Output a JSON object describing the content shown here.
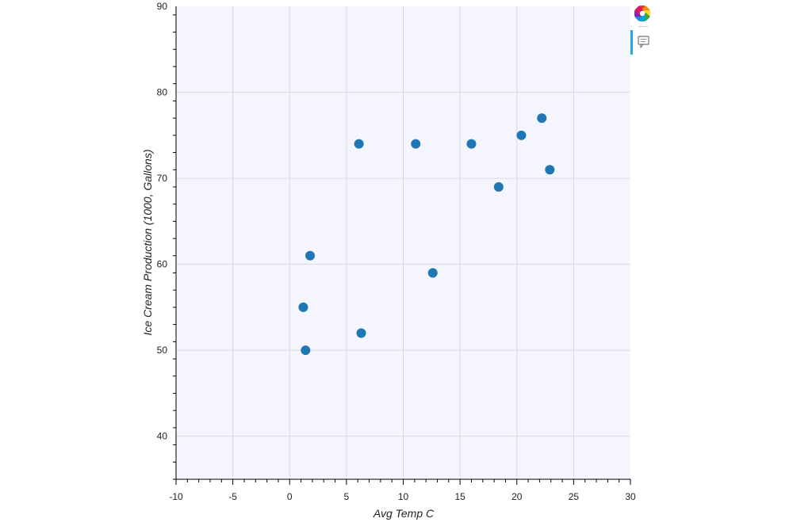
{
  "chart_data": {
    "type": "scatter",
    "xlabel": "Avg Temp C",
    "ylabel": "Ice Cream Production (1000, Gallons)",
    "xlim": [
      -10,
      30
    ],
    "ylim": [
      35,
      90
    ],
    "x_ticks": [
      -10,
      -5,
      0,
      5,
      10,
      15,
      20,
      25,
      30
    ],
    "y_ticks": [
      40,
      50,
      60,
      70,
      80,
      90
    ],
    "grid": true,
    "marker_color": "#1f77b4",
    "points": [
      {
        "x": 1.2,
        "y": 55
      },
      {
        "x": 1.4,
        "y": 50
      },
      {
        "x": 1.8,
        "y": 61
      },
      {
        "x": 6.1,
        "y": 74
      },
      {
        "x": 6.3,
        "y": 52
      },
      {
        "x": 11.1,
        "y": 74
      },
      {
        "x": 12.6,
        "y": 59
      },
      {
        "x": 16.0,
        "y": 74
      },
      {
        "x": 18.4,
        "y": 69
      },
      {
        "x": 20.4,
        "y": 75
      },
      {
        "x": 22.2,
        "y": 77
      },
      {
        "x": 22.9,
        "y": 71
      }
    ]
  },
  "toolbar": {
    "logo_icon": "bokeh-logo-icon",
    "tools": [
      {
        "name": "hover-tool-icon",
        "active": true
      }
    ],
    "active_color": "#26aae1"
  },
  "colors": {
    "plot_background": "#f4f5fd",
    "grid": "#d9dbe3"
  }
}
